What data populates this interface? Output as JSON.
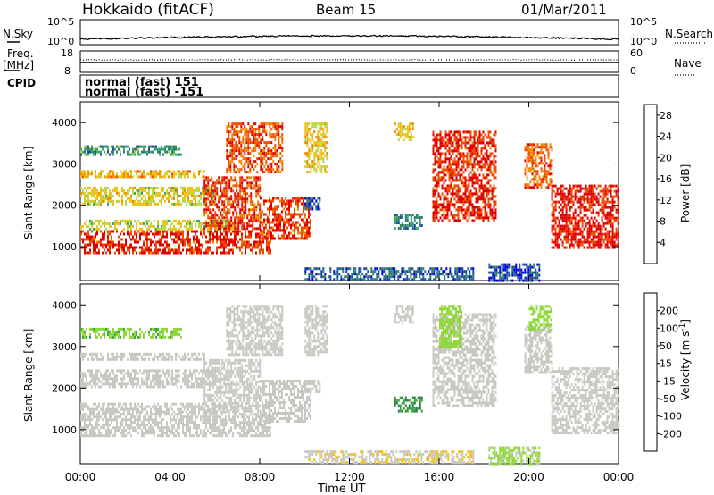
{
  "header": {
    "station": "Hokkaido (fitACF)",
    "beam": "Beam 15",
    "date": "01/Mar/2011"
  },
  "aux_labels": {
    "nsky": "N.Sky",
    "freq_line1": "Freq.",
    "freq_line2": "[MHz]",
    "cpid": "CPID",
    "nsearch": "N.Search",
    "nave": "Nave",
    "noise_ticks": [
      "10^5",
      "10^0"
    ],
    "freq_ticks": [
      "18",
      "8"
    ],
    "nave_ticks": [
      "60",
      "0"
    ]
  },
  "cpid_modes": [
    "normal (fast) 151",
    "normal (fast) -151"
  ],
  "colors": {
    "power_scale": [
      "#0000e0",
      "#1a4aa0",
      "#2e7d6e",
      "#3ea86a",
      "#b8d84a",
      "#f2c010",
      "#f28a00",
      "#f24a00",
      "#e00000"
    ],
    "velocity_scale": [
      "#e00000",
      "#f25000",
      "#f28a00",
      "#f2c010",
      "#c8c8c0",
      "#c8c8c0",
      "#8ed83a",
      "#3ea83a",
      "#2e7d4e",
      "#1a4aa0",
      "#0000c0"
    ],
    "no_data": "#ffffff"
  },
  "chart_data": [
    {
      "type": "heatmap",
      "panel": "power",
      "xlabel": "Time UT",
      "ylabel": "Slant Range [km]",
      "x_ticks": [
        "00:00",
        "04:00",
        "08:00",
        "12:00",
        "16:00",
        "20:00",
        "00:00"
      ],
      "xlim_hours": [
        0,
        24
      ],
      "y_ticks": [
        1000,
        2000,
        3000,
        4000
      ],
      "ylim_km": [
        180,
        4500
      ],
      "colorbar_label": "Power [dB]",
      "colorbar_ticks": [
        4,
        8,
        12,
        16,
        20,
        24,
        28
      ],
      "colorbar_range": [
        0,
        30
      ],
      "regions": [
        {
          "t0": 0.0,
          "t1": 8.5,
          "r0": 850,
          "r1": 1400,
          "value": 27
        },
        {
          "t0": 0.0,
          "t1": 7.0,
          "r0": 1400,
          "r1": 1650,
          "value": 16
        },
        {
          "t0": 0.0,
          "t1": 6.0,
          "r0": 2050,
          "r1": 2450,
          "value": 17
        },
        {
          "t0": 0.0,
          "t1": 5.5,
          "r0": 2700,
          "r1": 2850,
          "value": 20
        },
        {
          "t0": 0.0,
          "t1": 4.5,
          "r0": 3200,
          "r1": 3450,
          "value": 10
        },
        {
          "t0": 5.5,
          "t1": 8.0,
          "r0": 1450,
          "r1": 2700,
          "value": 26
        },
        {
          "t0": 6.5,
          "t1": 9.0,
          "r0": 2800,
          "r1": 4000,
          "value": 25
        },
        {
          "t0": 8.0,
          "t1": 10.3,
          "r0": 1200,
          "r1": 2200,
          "value": 26
        },
        {
          "t0": 10.0,
          "t1": 11.0,
          "r0": 2800,
          "r1": 4000,
          "value": 18
        },
        {
          "t0": 10.0,
          "t1": 10.7,
          "r0": 1900,
          "r1": 2200,
          "value": 6
        },
        {
          "t0": 14.0,
          "t1": 14.8,
          "r0": 3550,
          "r1": 4000,
          "value": 18
        },
        {
          "t0": 14.0,
          "t1": 15.2,
          "r0": 1450,
          "r1": 1800,
          "value": 9
        },
        {
          "t0": 15.7,
          "t1": 18.5,
          "r0": 1600,
          "r1": 3800,
          "value": 27
        },
        {
          "t0": 19.8,
          "t1": 21.0,
          "r0": 2400,
          "r1": 3500,
          "value": 24
        },
        {
          "t0": 21.0,
          "t1": 24.0,
          "r0": 950,
          "r1": 2500,
          "value": 28
        },
        {
          "t0": 18.2,
          "t1": 20.5,
          "r0": 200,
          "r1": 600,
          "value": 5
        },
        {
          "t0": 10.0,
          "t1": 17.5,
          "r0": 200,
          "r1": 500,
          "value": 6
        }
      ]
    },
    {
      "type": "heatmap",
      "panel": "velocity",
      "xlabel": "Time UT",
      "ylabel": "Slant Range [km]",
      "x_ticks": [
        "00:00",
        "04:00",
        "08:00",
        "12:00",
        "16:00",
        "20:00",
        "00:00"
      ],
      "xlim_hours": [
        0,
        24
      ],
      "y_ticks": [
        1000,
        2000,
        3000,
        4000
      ],
      "ylim_km": [
        180,
        4500
      ],
      "colorbar_label": "Velocity [m s^-1]",
      "colorbar_ticks": [
        200,
        100,
        50,
        15,
        -15,
        -50,
        -100,
        -200
      ],
      "colorbar_range": [
        -250,
        250
      ],
      "regions": [
        {
          "t0": 0.0,
          "t1": 8.5,
          "r0": 850,
          "r1": 1400,
          "value": 0
        },
        {
          "t0": 0.0,
          "t1": 7.0,
          "r0": 1400,
          "r1": 1650,
          "value": 0
        },
        {
          "t0": 0.0,
          "t1": 6.0,
          "r0": 2050,
          "r1": 2450,
          "value": -40
        },
        {
          "t0": 0.0,
          "t1": 5.5,
          "r0": 2700,
          "r1": 2850,
          "value": 0
        },
        {
          "t0": 0.0,
          "t1": 4.5,
          "r0": 3200,
          "r1": 3450,
          "value": 60
        },
        {
          "t0": 5.5,
          "t1": 8.0,
          "r0": 1450,
          "r1": 2700,
          "value": -30
        },
        {
          "t0": 6.5,
          "t1": 9.0,
          "r0": 2800,
          "r1": 4000,
          "value": 0
        },
        {
          "t0": 8.0,
          "t1": 10.3,
          "r0": 1200,
          "r1": 2200,
          "value": 0
        },
        {
          "t0": 10.0,
          "t1": 11.0,
          "r0": 2800,
          "r1": 4000,
          "value": 0
        },
        {
          "t0": 10.0,
          "t1": 10.7,
          "r0": 1900,
          "r1": 2200,
          "value": 0
        },
        {
          "t0": 14.0,
          "t1": 14.8,
          "r0": 3550,
          "r1": 4000,
          "value": 0
        },
        {
          "t0": 14.0,
          "t1": 15.2,
          "r0": 1450,
          "r1": 1800,
          "value": 110
        },
        {
          "t0": 15.7,
          "t1": 18.5,
          "r0": 1600,
          "r1": 3800,
          "value": 0
        },
        {
          "t0": 16.0,
          "t1": 17.0,
          "r0": 3000,
          "r1": 4000,
          "value": 45
        },
        {
          "t0": 19.8,
          "t1": 21.0,
          "r0": 2400,
          "r1": 3500,
          "value": 0
        },
        {
          "t0": 20.0,
          "t1": 21.0,
          "r0": 3400,
          "r1": 4000,
          "value": 45
        },
        {
          "t0": 21.0,
          "t1": 24.0,
          "r0": 950,
          "r1": 2500,
          "value": 0
        },
        {
          "t0": 18.2,
          "t1": 20.5,
          "r0": 200,
          "r1": 600,
          "value": 30
        },
        {
          "t0": 10.0,
          "t1": 17.5,
          "r0": 200,
          "r1": 500,
          "value": -60
        }
      ]
    }
  ]
}
